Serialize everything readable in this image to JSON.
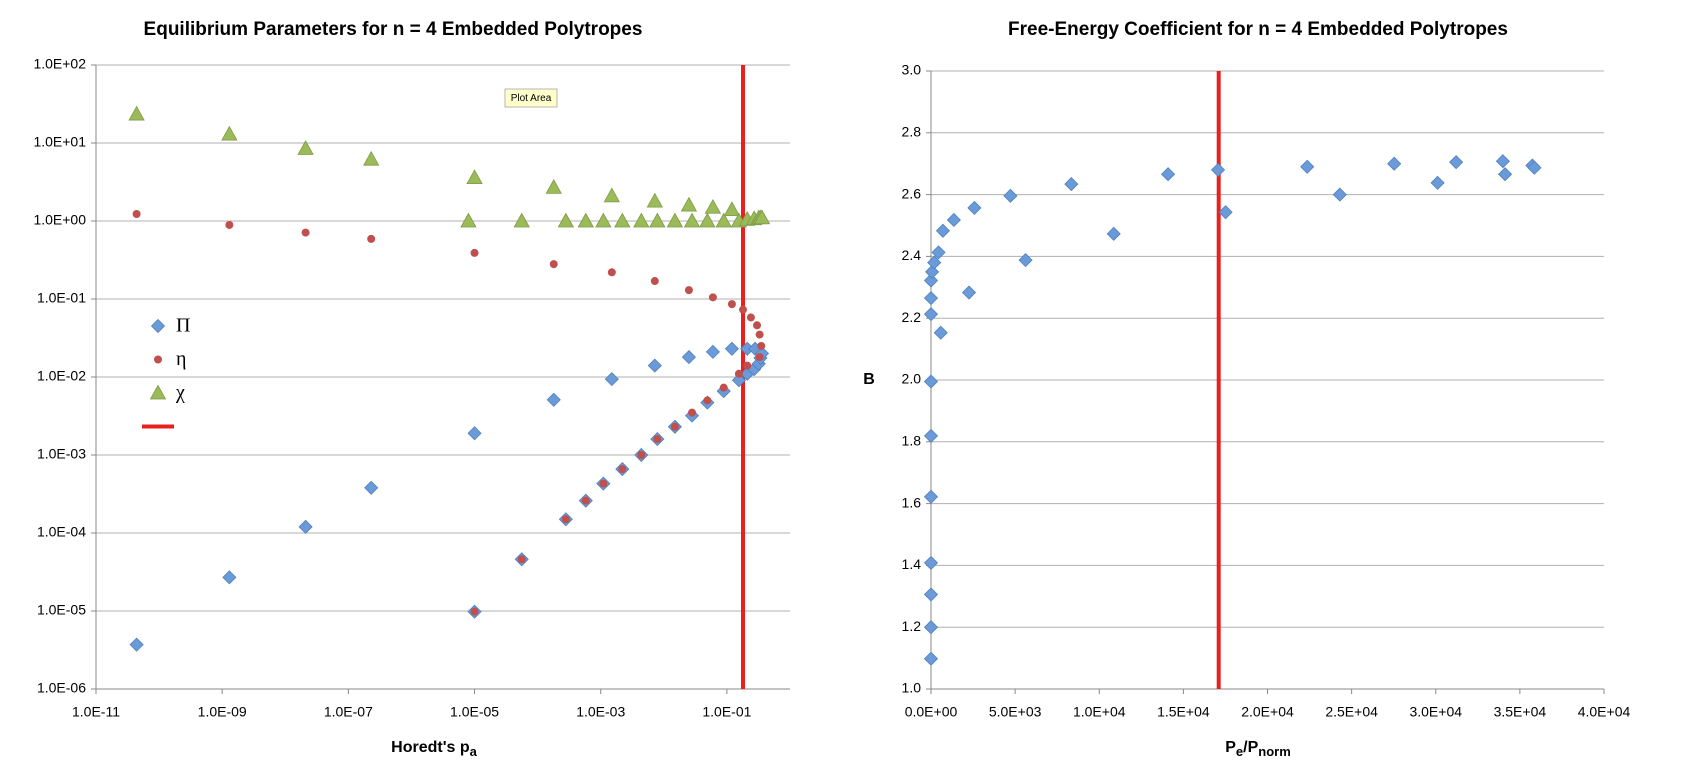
{
  "chart_data": [
    {
      "type": "scatter",
      "title": "Equilibrium Parameters for n = 4 Embedded Polytropes",
      "x_label": [
        {
          "text": "Horedt's p"
        },
        {
          "text": "a",
          "sub": true
        }
      ],
      "xlog": true,
      "ylog": true,
      "grid": true,
      "legend": "left",
      "xlim": [
        1e-11,
        1
      ],
      "ylim": [
        1e-06,
        100
      ],
      "xticks": [
        {
          "value": 1e-11,
          "label": "1.0E-11"
        },
        {
          "value": 1e-09,
          "label": "1.0E-09"
        },
        {
          "value": 1e-07,
          "label": "1.0E-07"
        },
        {
          "value": 1e-05,
          "label": "1.0E-05"
        },
        {
          "value": 0.001,
          "label": "1.0E-03"
        },
        {
          "value": 0.1,
          "label": "1.0E-01"
        }
      ],
      "yticks": [
        {
          "value": 1e-06,
          "label": "1.0E-06"
        },
        {
          "value": 1e-05,
          "label": "1.0E-05"
        },
        {
          "value": 0.0001,
          "label": "1.0E-04"
        },
        {
          "value": 0.001,
          "label": "1.0E-03"
        },
        {
          "value": 0.01,
          "label": "1.0E-02"
        },
        {
          "value": 0.1,
          "label": "1.0E-01"
        },
        {
          "value": 1,
          "label": "1.0E+00"
        },
        {
          "value": 10,
          "label": "1.0E+01"
        },
        {
          "value": 100,
          "label": "1.0E+02"
        }
      ],
      "vline": {
        "x": 0.18,
        "color": "#e8211f"
      },
      "tooltip": "Plot Area",
      "series": [
        {
          "name": "Π",
          "color": "#6a9bd8",
          "marker": "diamond",
          "x": [
            4.4e-11,
            1.3e-09,
            2.1e-08,
            2.3e-07,
            1e-05,
            0.00018,
            0.0015,
            0.0072,
            0.025,
            0.06,
            0.12,
            0.21,
            0.28,
            1e-05,
            5.6e-05,
            0.00028,
            0.00058,
            0.0011,
            0.0022,
            0.0044,
            0.0079,
            0.015,
            0.028,
            0.049,
            0.089,
            0.155,
            0.21,
            0.27,
            0.32,
            0.34,
            0.36
          ],
          "values": [
            3.7e-06,
            2.7e-05,
            0.00012,
            0.00038,
            0.0019,
            0.0051,
            0.0094,
            0.014,
            0.018,
            0.021,
            0.023,
            0.023,
            0.023,
            9.8e-06,
            4.6e-05,
            0.00015,
            0.00026,
            0.00043,
            0.00066,
            0.001,
            0.0016,
            0.0023,
            0.0032,
            0.0047,
            0.0066,
            0.0091,
            0.011,
            0.0126,
            0.0148,
            0.0175,
            0.02
          ]
        },
        {
          "name": "η",
          "color": "#c0504d",
          "marker": "circle",
          "x": [
            4.4e-11,
            1.3e-09,
            2.1e-08,
            2.3e-07,
            1e-05,
            0.00018,
            0.0015,
            0.0072,
            0.025,
            0.06,
            0.12,
            0.18,
            0.24,
            0.3,
            0.33,
            0.35,
            0.33,
            1e-05,
            5.6e-05,
            0.00028,
            0.00058,
            0.0011,
            0.0022,
            0.0044,
            0.0079,
            0.015,
            0.028,
            0.049,
            0.089,
            0.155,
            0.21
          ],
          "values": [
            1.23,
            0.89,
            0.71,
            0.59,
            0.39,
            0.28,
            0.22,
            0.17,
            0.13,
            0.105,
            0.086,
            0.073,
            0.058,
            0.046,
            0.035,
            0.025,
            0.018,
            9.8e-06,
            4.6e-05,
            0.00015,
            0.00026,
            0.00043,
            0.00066,
            0.001,
            0.0016,
            0.0023,
            0.0035,
            0.005,
            0.0073,
            0.011,
            0.014
          ]
        },
        {
          "name": "χ",
          "color": "#9bbb59",
          "marker": "triangle",
          "x": [
            4.4e-11,
            1.3e-09,
            2.1e-08,
            2.3e-07,
            1e-05,
            0.00018,
            0.0015,
            0.0072,
            0.025,
            0.06,
            0.12,
            8e-06,
            5.6e-05,
            0.00028,
            0.00058,
            0.0011,
            0.0022,
            0.0044,
            0.0079,
            0.015,
            0.028,
            0.049,
            0.089,
            0.155,
            0.21,
            0.27,
            0.32,
            0.34,
            0.36
          ],
          "values": [
            23.5,
            13,
            8.5,
            6.2,
            3.6,
            2.7,
            2.1,
            1.8,
            1.6,
            1.5,
            1.4,
            1.0,
            1.0,
            1.0,
            1.0,
            1.0,
            1.0,
            1.0,
            1.0,
            1.0,
            1.0,
            1.0,
            1.0,
            1.0,
            1.05,
            1.07,
            1.1,
            1.1,
            1.1
          ]
        }
      ]
    },
    {
      "type": "scatter",
      "title": "Free-Energy Coefficient for n = 4 Embedded Polytropes",
      "x_label": [
        {
          "text": "P"
        },
        {
          "text": "e",
          "sub": true
        },
        {
          "text": "/P"
        },
        {
          "text": "norm",
          "sub": true
        }
      ],
      "y_label": "B",
      "xlog": false,
      "ylog": false,
      "grid": true,
      "xlim": [
        0,
        40000
      ],
      "ylim": [
        1,
        3
      ],
      "xticks": [
        {
          "value": 0,
          "label": "0.0E+00"
        },
        {
          "value": 5000,
          "label": "5.0E+03"
        },
        {
          "value": 10000,
          "label": "1.0E+04"
        },
        {
          "value": 15000,
          "label": "1.5E+04"
        },
        {
          "value": 20000,
          "label": "2.0E+04"
        },
        {
          "value": 25000,
          "label": "2.5E+04"
        },
        {
          "value": 30000,
          "label": "3.0E+04"
        },
        {
          "value": 35000,
          "label": "3.5E+04"
        },
        {
          "value": 40000,
          "label": "4.0E+04"
        }
      ],
      "yticks": [
        {
          "value": 1,
          "label": "1.0"
        },
        {
          "value": 1.2,
          "label": "1.2"
        },
        {
          "value": 1.4,
          "label": "1.4"
        },
        {
          "value": 1.6,
          "label": "1.6"
        },
        {
          "value": 1.8,
          "label": "1.8"
        },
        {
          "value": 2,
          "label": "2.0"
        },
        {
          "value": 2.2,
          "label": "2.2"
        },
        {
          "value": 2.4,
          "label": "2.4"
        },
        {
          "value": 2.6,
          "label": "2.6"
        },
        {
          "value": 2.8,
          "label": "2.8"
        },
        {
          "value": 3,
          "label": "3.0"
        }
      ],
      "vline": {
        "x": 17100,
        "color": "#e8211f"
      },
      "series": [
        {
          "color": "#6a9bd8",
          "marker": "diamond",
          "x": [
            0,
            0,
            0,
            0,
            0,
            0,
            0,
            0,
            0,
            0,
            65,
            190,
            450,
            710,
            1360,
            2580,
            4720,
            8340,
            14090,
            17060,
            22360,
            27530,
            31210,
            33990,
            35740,
            580,
            2260,
            5620,
            10860,
            17510,
            24300,
            30110,
            34120,
            35860
          ],
          "values": [
            1.098,
            1.2,
            1.306,
            1.408,
            1.622,
            1.819,
            1.995,
            2.213,
            2.265,
            2.322,
            2.35,
            2.38,
            2.413,
            2.483,
            2.518,
            2.557,
            2.596,
            2.634,
            2.666,
            2.68,
            2.69,
            2.7,
            2.705,
            2.708,
            2.694,
            2.153,
            2.283,
            2.388,
            2.473,
            2.543,
            2.6,
            2.638,
            2.666,
            2.687
          ]
        }
      ]
    }
  ]
}
